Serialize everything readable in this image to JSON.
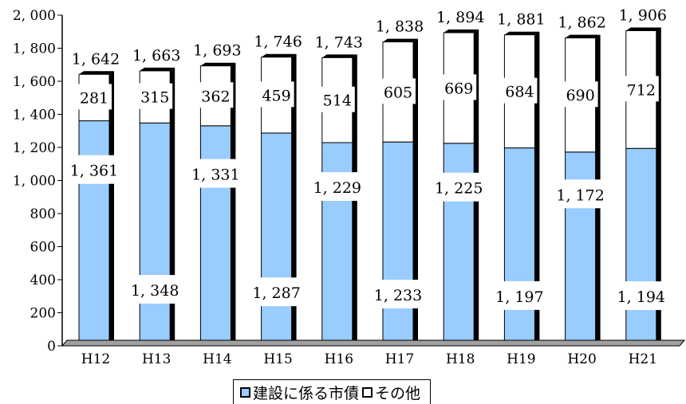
{
  "chart_data": {
    "type": "bar",
    "stacked": true,
    "categories": [
      "H12",
      "H13",
      "H14",
      "H15",
      "H16",
      "H17",
      "H18",
      "H19",
      "H20",
      "H21"
    ],
    "series": [
      {
        "name": "建設に係る市債",
        "values": [
          1361,
          1348,
          1331,
          1287,
          1229,
          1233,
          1225,
          1197,
          1172,
          1194
        ],
        "color": "#99ccff"
      },
      {
        "name": "その他",
        "values": [
          281,
          315,
          362,
          459,
          514,
          605,
          669,
          684,
          690,
          712
        ],
        "color": "#ffffff"
      }
    ],
    "value_labels": {
      "totals": [
        "1, 642",
        "1, 663",
        "1, 693",
        "1, 746",
        "1, 743",
        "1, 838",
        "1, 894",
        "1, 881",
        "1, 862",
        "1, 906"
      ],
      "lower": [
        "1, 361",
        "1, 348",
        "1, 331",
        "1, 287",
        "1, 229",
        "1, 233",
        "1, 225",
        "1, 197",
        "1, 172",
        "1, 194"
      ],
      "upper": [
        "281",
        "315",
        "362",
        "459",
        "514",
        "605",
        "669",
        "684",
        "690",
        "712"
      ]
    },
    "y_ticks": [
      "0",
      "200",
      "400",
      "600",
      "800",
      "1, 000",
      "1, 200",
      "1, 400",
      "1, 600",
      "1, 800",
      "2, 000"
    ],
    "ylim": [
      0,
      2000
    ],
    "grid": false,
    "legend_position": "bottom"
  },
  "legend": {
    "items": [
      {
        "label": "建設に係る市債",
        "color": "#99ccff"
      },
      {
        "label": "その他",
        "color": "#ffffff"
      }
    ]
  }
}
